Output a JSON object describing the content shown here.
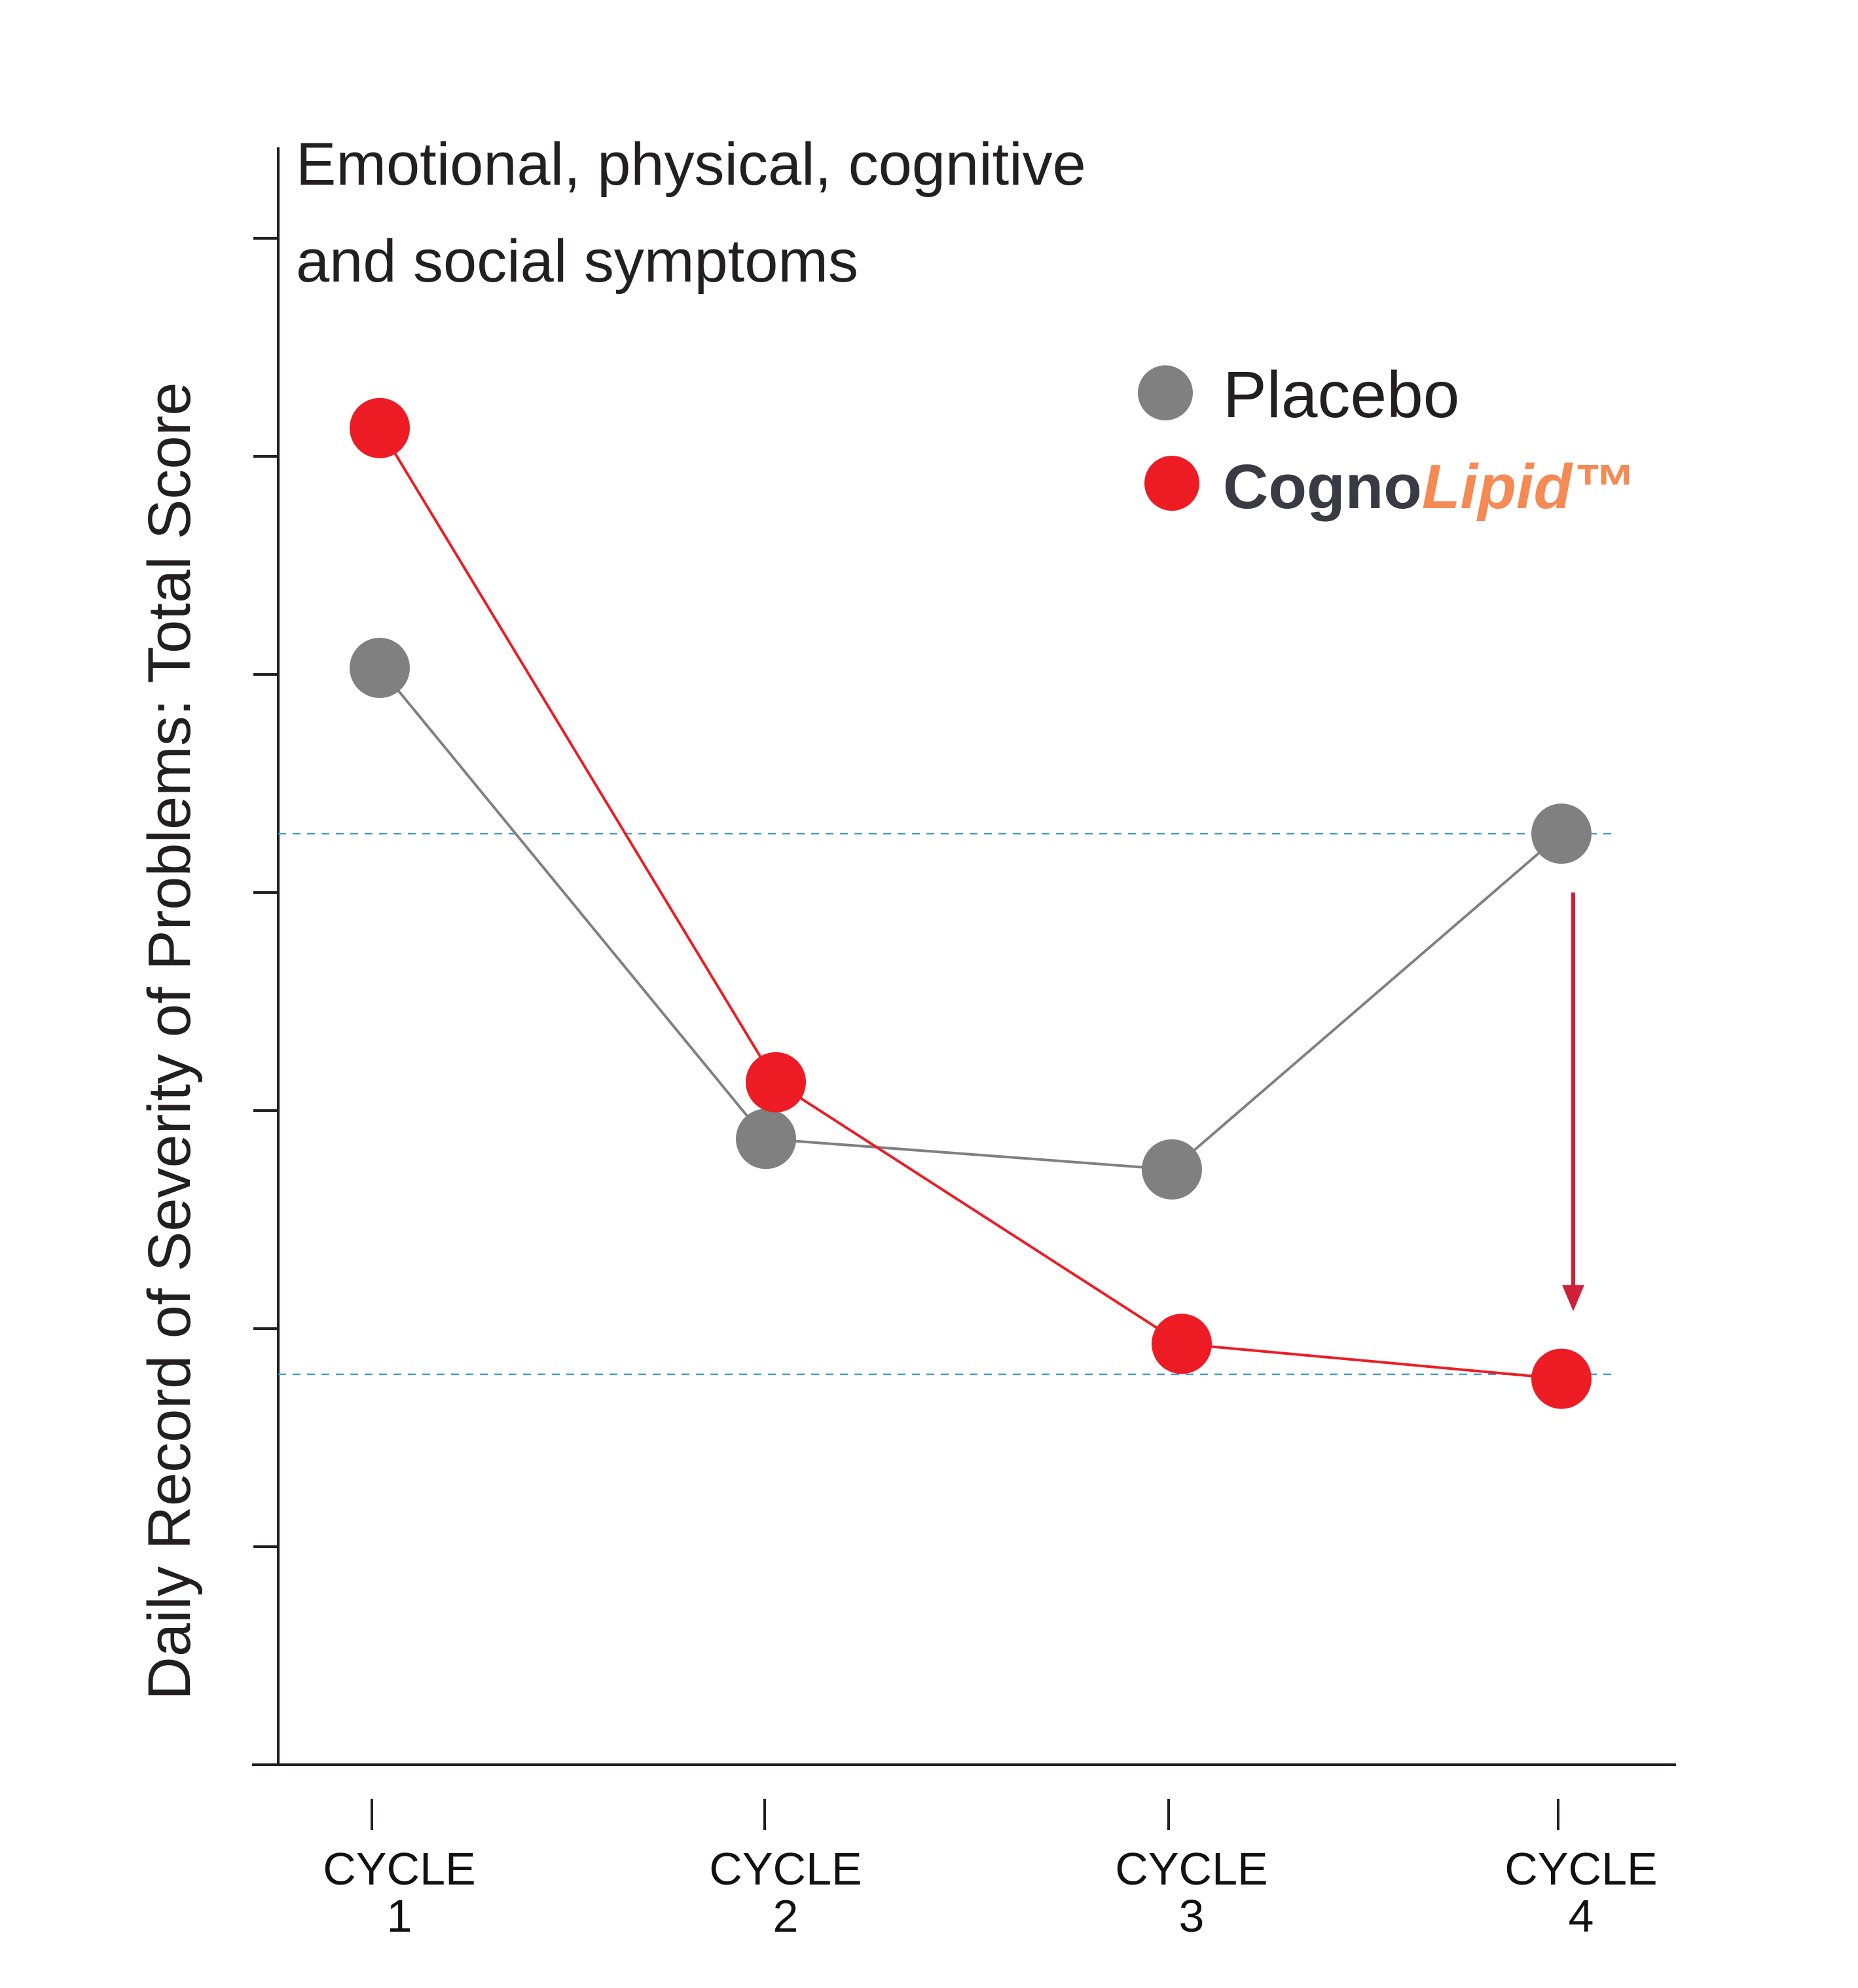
{
  "chart_data": {
    "type": "line",
    "title_lines": [
      "Emotional, physical, cognitive",
      "and social symptoms"
    ],
    "ylabel": "Daily Record of Severity of Problems: Total Score",
    "categories": [
      {
        "line1": "CYCLE",
        "line2": "1"
      },
      {
        "line1": "CYCLE",
        "line2": "2"
      },
      {
        "line1": "CYCLE",
        "line2": "3"
      },
      {
        "line1": "CYCLE",
        "line2": "4"
      }
    ],
    "ylim": [
      0,
      7.4
    ],
    "ytick_count": 7,
    "grid": false,
    "legend_position": "top-right",
    "series": [
      {
        "key": "placebo",
        "name": "Placebo",
        "color": "#808080",
        "values": [
          5.03,
          2.87,
          2.73,
          4.27
        ]
      },
      {
        "key": "cognolipid",
        "name_parts": [
          "Cogno",
          "Lipid™"
        ],
        "name_colors": [
          "#3a3a44",
          "#f58a55"
        ],
        "color": "#ed1c24",
        "values": [
          6.13,
          3.13,
          1.93,
          1.77
        ]
      }
    ],
    "reference_lines": [
      4.27,
      1.79
    ],
    "reference_color": "#4a9cc9",
    "annotation": {
      "type": "arrow",
      "category_index": 3,
      "from_value": 4.0,
      "to_value": 2.08,
      "color": "#d11f3a"
    }
  }
}
